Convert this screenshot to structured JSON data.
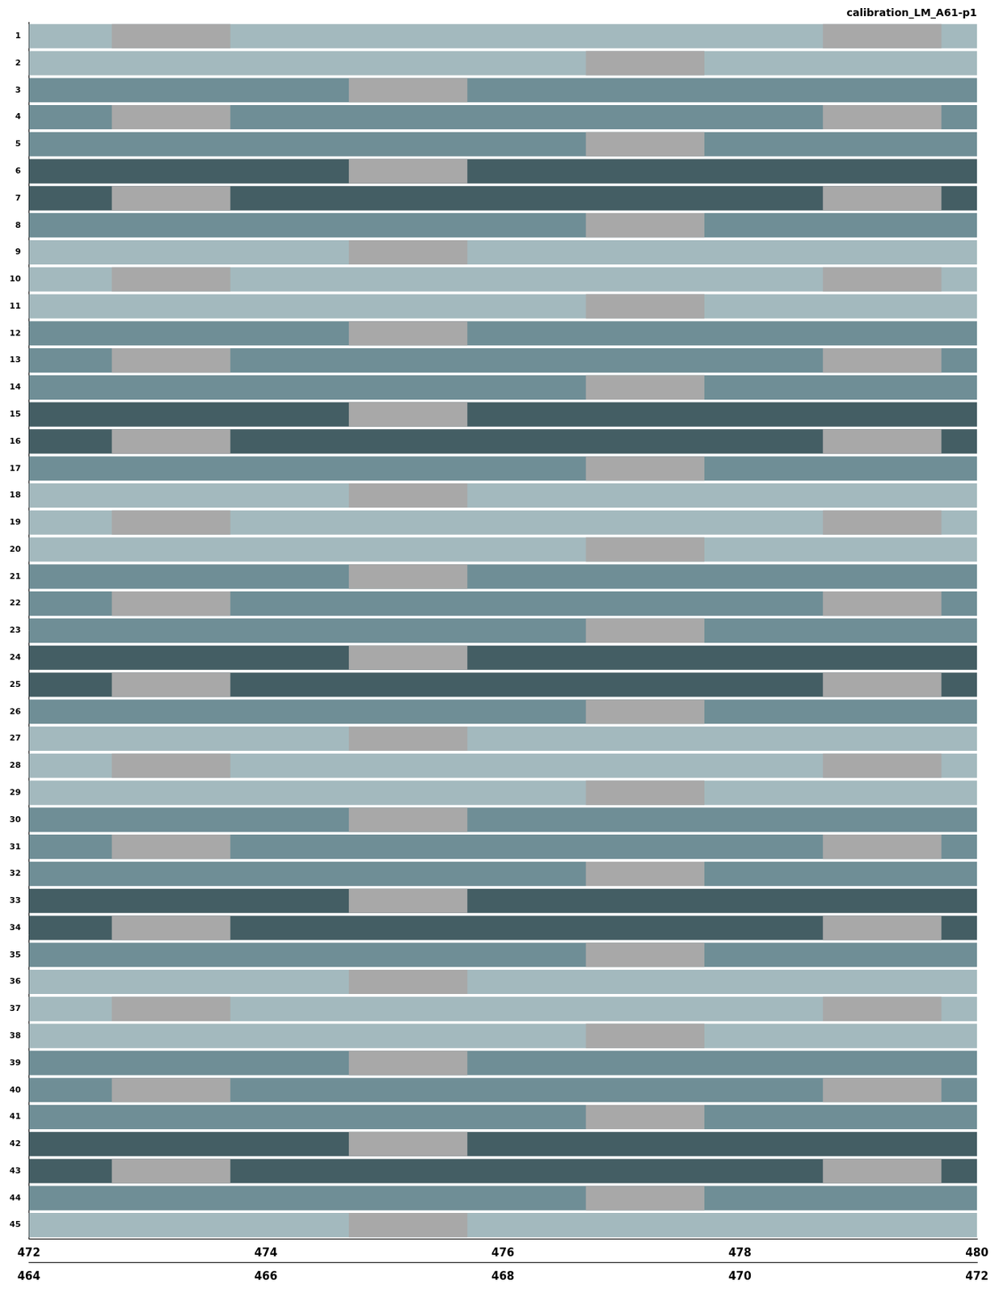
{
  "chart_data": {
    "type": "bar",
    "orientation": "horizontal",
    "title": "calibration_LM_A61-p1",
    "categories": [
      "1",
      "2",
      "3",
      "4",
      "5",
      "6",
      "7",
      "8",
      "9",
      "10",
      "11",
      "12",
      "13",
      "14",
      "15",
      "16",
      "17",
      "18",
      "19",
      "20",
      "21",
      "22",
      "23",
      "24",
      "25",
      "26",
      "27",
      "28",
      "29",
      "30",
      "31",
      "32",
      "33",
      "34",
      "35",
      "36",
      "37",
      "38",
      "39",
      "40",
      "41",
      "42",
      "43",
      "44",
      "45"
    ],
    "xlim": [
      472,
      480
    ],
    "xticks": [
      472,
      474,
      476,
      478,
      480
    ],
    "x2lim": [
      464,
      472
    ],
    "x2ticks": [
      464,
      466,
      468,
      470,
      472
    ],
    "grid": false,
    "series": [
      {
        "colors": [
          "#a3b9be",
          "#a3b9be",
          "#6f8e96",
          "#6f8e96",
          "#6f8e96",
          "#445e64",
          "#445e64",
          "#6f8e96",
          "#a3b9be",
          "#a3b9be",
          "#a3b9be",
          "#6f8e96",
          "#6f8e96",
          "#6f8e96",
          "#445e64",
          "#445e64",
          "#6f8e96",
          "#a3b9be",
          "#a3b9be",
          "#a3b9be",
          "#6f8e96",
          "#6f8e96",
          "#6f8e96",
          "#445e64",
          "#445e64",
          "#6f8e96",
          "#a3b9be",
          "#a3b9be",
          "#a3b9be",
          "#6f8e96",
          "#6f8e96",
          "#6f8e96",
          "#445e64",
          "#445e64",
          "#6f8e96",
          "#a3b9be",
          "#a3b9be",
          "#a3b9be",
          "#6f8e96",
          "#6f8e96",
          "#6f8e96",
          "#445e64",
          "#445e64",
          "#6f8e96",
          "#a3b9be"
        ],
        "values": [
          [
            472,
            480
          ],
          [
            472,
            480
          ],
          [
            472,
            480
          ],
          [
            472,
            480
          ],
          [
            472,
            480
          ],
          [
            472,
            480
          ],
          [
            472,
            480
          ],
          [
            472,
            480
          ],
          [
            472,
            480
          ],
          [
            472,
            480
          ],
          [
            472,
            480
          ],
          [
            472,
            480
          ],
          [
            472,
            480
          ],
          [
            472,
            480
          ],
          [
            472,
            480
          ],
          [
            472,
            480
          ],
          [
            472,
            480
          ],
          [
            472,
            480
          ],
          [
            472,
            480
          ],
          [
            472,
            480
          ],
          [
            472,
            480
          ],
          [
            472,
            480
          ],
          [
            472,
            480
          ],
          [
            472,
            480
          ],
          [
            472,
            480
          ],
          [
            472,
            480
          ],
          [
            472,
            480
          ],
          [
            472,
            480
          ],
          [
            472,
            480
          ],
          [
            472,
            480
          ],
          [
            472,
            480
          ],
          [
            472,
            480
          ],
          [
            472,
            480
          ],
          [
            472,
            480
          ],
          [
            472,
            480
          ],
          [
            472,
            480
          ],
          [
            472,
            480
          ],
          [
            472,
            480
          ],
          [
            472,
            480
          ],
          [
            472,
            480
          ],
          [
            472,
            480
          ],
          [
            472,
            480
          ],
          [
            472,
            480
          ],
          [
            472,
            480
          ],
          [
            472,
            480
          ]
        ]
      },
      {
        "color": "#a8a8a8",
        "values": [
          [
            472.7,
            473.7
          ],
          null,
          null,
          [
            472.7,
            473.7
          ],
          null,
          null,
          [
            472.7,
            473.7
          ],
          null,
          null,
          [
            472.7,
            473.7
          ],
          null,
          null,
          [
            472.7,
            473.7
          ],
          null,
          null,
          [
            472.7,
            473.7
          ],
          null,
          null,
          [
            472.7,
            473.7
          ],
          null,
          null,
          [
            472.7,
            473.7
          ],
          null,
          null,
          [
            472.7,
            473.7
          ],
          null,
          null,
          [
            472.7,
            473.7
          ],
          null,
          null,
          [
            472.7,
            473.7
          ],
          null,
          null,
          [
            472.7,
            473.7
          ],
          null,
          null,
          [
            472.7,
            473.7
          ],
          null,
          null,
          [
            472.7,
            473.7
          ],
          null,
          null,
          [
            472.7,
            473.7
          ],
          null,
          null
        ]
      },
      {
        "color": "#a8a8a8",
        "values": [
          null,
          null,
          [
            474.7,
            475.7
          ],
          null,
          null,
          [
            474.7,
            475.7
          ],
          null,
          null,
          [
            474.7,
            475.7
          ],
          null,
          null,
          [
            474.7,
            475.7
          ],
          null,
          null,
          [
            474.7,
            475.7
          ],
          null,
          null,
          [
            474.7,
            475.7
          ],
          null,
          null,
          [
            474.7,
            475.7
          ],
          null,
          null,
          [
            474.7,
            475.7
          ],
          null,
          null,
          [
            474.7,
            475.7
          ],
          null,
          null,
          [
            474.7,
            475.7
          ],
          null,
          null,
          [
            474.7,
            475.7
          ],
          null,
          null,
          [
            474.7,
            475.7
          ],
          null,
          null,
          [
            474.7,
            475.7
          ],
          null,
          null,
          [
            474.7,
            475.7
          ],
          null,
          null,
          [
            474.7,
            475.7
          ]
        ]
      },
      {
        "color": "#a8a8a8",
        "values": [
          null,
          [
            476.7,
            477.7
          ],
          null,
          null,
          [
            476.7,
            477.7
          ],
          null,
          null,
          [
            476.7,
            477.7
          ],
          null,
          null,
          [
            476.7,
            477.7
          ],
          null,
          null,
          [
            476.7,
            477.7
          ],
          null,
          null,
          [
            476.7,
            477.7
          ],
          null,
          null,
          [
            476.7,
            477.7
          ],
          null,
          null,
          [
            476.7,
            477.7
          ],
          null,
          null,
          [
            476.7,
            477.7
          ],
          null,
          null,
          [
            476.7,
            477.7
          ],
          null,
          null,
          [
            476.7,
            477.7
          ],
          null,
          null,
          [
            476.7,
            477.7
          ],
          null,
          null,
          [
            476.7,
            477.7
          ],
          null,
          null,
          [
            476.7,
            477.7
          ],
          null,
          null,
          [
            476.7,
            477.7
          ],
          null
        ]
      },
      {
        "color": "#a8a8a8",
        "values": [
          [
            478.7,
            479.7
          ],
          null,
          null,
          [
            478.7,
            479.7
          ],
          null,
          null,
          [
            478.7,
            479.7
          ],
          null,
          null,
          [
            478.7,
            479.7
          ],
          null,
          null,
          [
            478.7,
            479.7
          ],
          null,
          null,
          [
            478.7,
            479.7
          ],
          null,
          null,
          [
            478.7,
            479.7
          ],
          null,
          null,
          [
            478.7,
            479.7
          ],
          null,
          null,
          [
            478.7,
            479.7
          ],
          null,
          null,
          [
            478.7,
            479.7
          ],
          null,
          null,
          [
            478.7,
            479.7
          ],
          null,
          null,
          [
            478.7,
            479.7
          ],
          null,
          null,
          [
            478.7,
            479.7
          ],
          null,
          null,
          [
            478.7,
            479.7
          ],
          null,
          null,
          [
            478.7,
            479.7
          ],
          null,
          null
        ]
      }
    ]
  }
}
